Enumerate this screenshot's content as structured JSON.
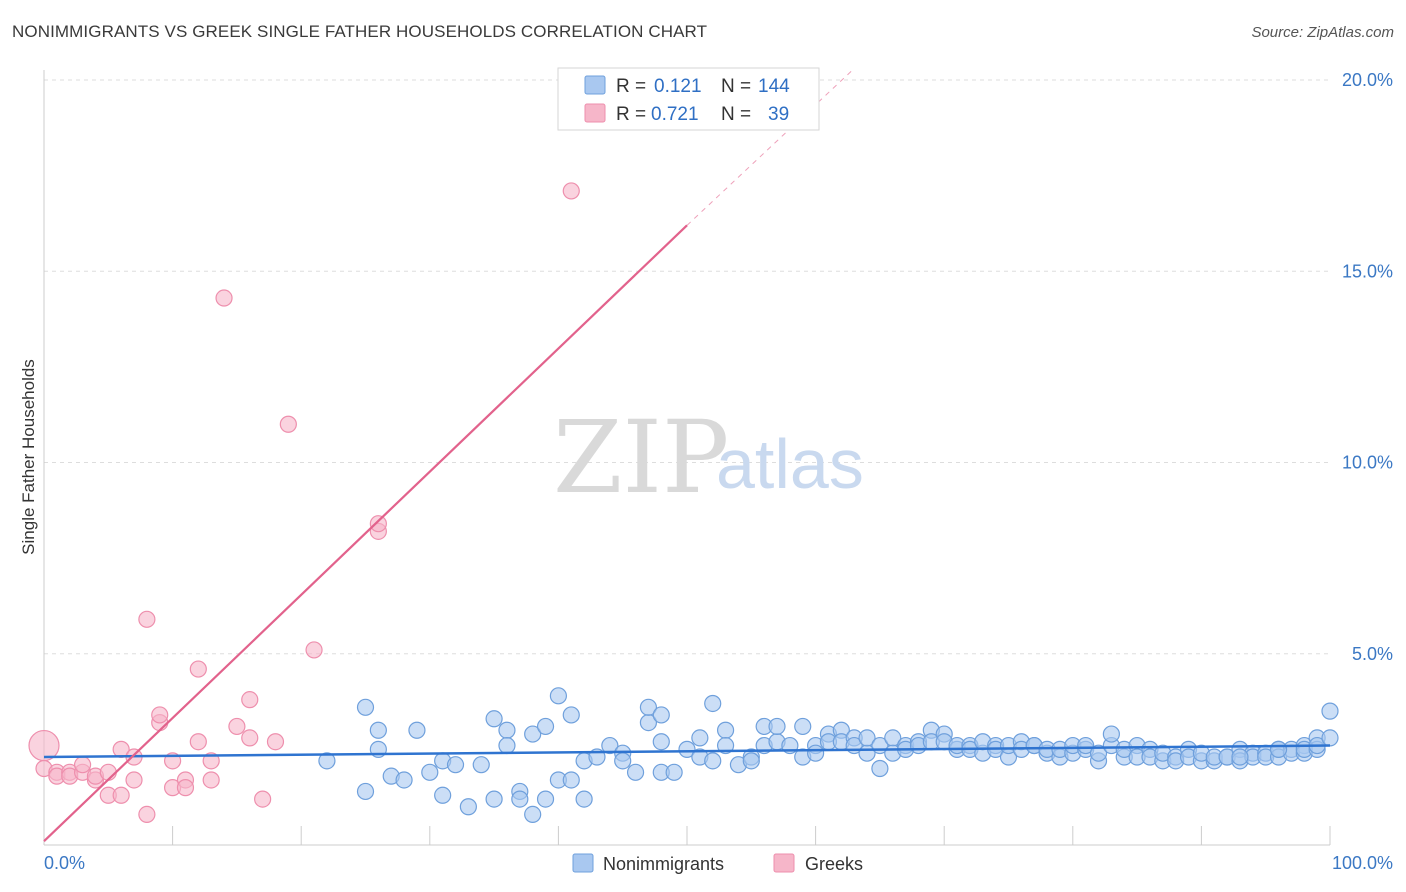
{
  "title": "NONIMMIGRANTS VS GREEK SINGLE FATHER HOUSEHOLDS CORRELATION CHART",
  "source": "Source: ZipAtlas.com",
  "watermark": {
    "zip": "ZIP",
    "atlas": "atlas"
  },
  "colors": {
    "blue_fill": "#a9c8f0",
    "blue_stroke": "#6fa0dc",
    "blue_line": "#2f74d0",
    "pink_fill": "#f6b6c9",
    "pink_stroke": "#ee8fad",
    "pink_line": "#e2628c",
    "grid": "#dddddd",
    "tick_text": "#3b78c4"
  },
  "legend": {
    "rows": [
      {
        "r_label": "R =",
        "r_value": "0.121",
        "n_label": "N =",
        "n_value": "144"
      },
      {
        "r_label": "R =",
        "r_value": "0.721",
        "n_label": "N =",
        "n_value": "39"
      }
    ]
  },
  "bottom_legend": [
    "Nonimmigrants",
    "Greeks"
  ],
  "chart_data": {
    "type": "scatter",
    "title": "NONIMMIGRANTS VS GREEK SINGLE FATHER HOUSEHOLDS CORRELATION CHART",
    "xlabel": "",
    "ylabel": "Single Father Households",
    "xlim": [
      0,
      100
    ],
    "ylim": [
      0,
      20.5
    ],
    "x_tick_labels": [
      "0.0%",
      "100.0%"
    ],
    "y_ticks": [
      5,
      10,
      15,
      20
    ],
    "y_tick_labels": [
      "5.0%",
      "10.0%",
      "15.0%",
      "20.0%"
    ],
    "grid": true,
    "legend_placement": "top-center",
    "series": [
      {
        "name": "Nonimmigrants",
        "r": 0.121,
        "n": 144,
        "trend": {
          "x0": 0,
          "y0": 2.3,
          "x1": 100,
          "y1": 2.6
        },
        "points": [
          [
            22,
            2.2
          ],
          [
            25,
            3.6
          ],
          [
            25,
            1.4
          ],
          [
            26,
            3.0
          ],
          [
            26,
            2.5
          ],
          [
            27,
            1.8
          ],
          [
            28,
            1.7
          ],
          [
            29,
            3.0
          ],
          [
            30,
            1.9
          ],
          [
            31,
            2.2
          ],
          [
            31,
            1.3
          ],
          [
            32,
            2.1
          ],
          [
            33,
            1.0
          ],
          [
            34,
            2.1
          ],
          [
            35,
            3.3
          ],
          [
            35,
            1.2
          ],
          [
            36,
            3.0
          ],
          [
            36,
            2.6
          ],
          [
            37,
            1.4
          ],
          [
            37,
            1.2
          ],
          [
            38,
            0.8
          ],
          [
            38,
            2.9
          ],
          [
            39,
            3.1
          ],
          [
            39,
            1.2
          ],
          [
            40,
            3.9
          ],
          [
            40,
            1.7
          ],
          [
            41,
            3.4
          ],
          [
            41,
            1.7
          ],
          [
            42,
            2.2
          ],
          [
            42,
            1.2
          ],
          [
            43,
            2.3
          ],
          [
            44,
            2.6
          ],
          [
            45,
            2.4
          ],
          [
            45,
            2.2
          ],
          [
            46,
            1.9
          ],
          [
            47,
            3.2
          ],
          [
            47,
            3.6
          ],
          [
            48,
            3.4
          ],
          [
            48,
            2.7
          ],
          [
            48,
            1.9
          ],
          [
            49,
            1.9
          ],
          [
            50,
            2.5
          ],
          [
            51,
            2.8
          ],
          [
            51,
            2.3
          ],
          [
            52,
            3.7
          ],
          [
            52,
            2.2
          ],
          [
            53,
            3.0
          ],
          [
            53,
            2.6
          ],
          [
            54,
            2.1
          ],
          [
            55,
            2.3
          ],
          [
            55,
            2.2
          ],
          [
            56,
            3.1
          ],
          [
            56,
            2.6
          ],
          [
            57,
            2.7
          ],
          [
            57,
            3.1
          ],
          [
            58,
            2.6
          ],
          [
            59,
            2.3
          ],
          [
            59,
            3.1
          ],
          [
            60,
            2.6
          ],
          [
            60,
            2.4
          ],
          [
            61,
            2.9
          ],
          [
            61,
            2.7
          ],
          [
            62,
            3.0
          ],
          [
            62,
            2.7
          ],
          [
            63,
            2.8
          ],
          [
            63,
            2.6
          ],
          [
            64,
            2.4
          ],
          [
            64,
            2.8
          ],
          [
            65,
            2.6
          ],
          [
            65,
            2.0
          ],
          [
            66,
            2.8
          ],
          [
            66,
            2.4
          ],
          [
            67,
            2.6
          ],
          [
            67,
            2.5
          ],
          [
            68,
            2.7
          ],
          [
            68,
            2.6
          ],
          [
            69,
            3.0
          ],
          [
            69,
            2.7
          ],
          [
            70,
            2.9
          ],
          [
            70,
            2.7
          ],
          [
            71,
            2.5
          ],
          [
            71,
            2.6
          ],
          [
            72,
            2.6
          ],
          [
            72,
            2.5
          ],
          [
            73,
            2.4
          ],
          [
            73,
            2.7
          ],
          [
            74,
            2.6
          ],
          [
            74,
            2.5
          ],
          [
            75,
            2.3
          ],
          [
            75,
            2.6
          ],
          [
            76,
            2.7
          ],
          [
            76,
            2.5
          ],
          [
            77,
            2.6
          ],
          [
            77,
            2.6
          ],
          [
            78,
            2.4
          ],
          [
            78,
            2.5
          ],
          [
            79,
            2.3
          ],
          [
            79,
            2.5
          ],
          [
            80,
            2.4
          ],
          [
            80,
            2.6
          ],
          [
            81,
            2.5
          ],
          [
            81,
            2.6
          ],
          [
            82,
            2.2
          ],
          [
            82,
            2.4
          ],
          [
            83,
            2.6
          ],
          [
            83,
            2.9
          ],
          [
            84,
            2.3
          ],
          [
            84,
            2.5
          ],
          [
            85,
            2.6
          ],
          [
            85,
            2.3
          ],
          [
            86,
            2.5
          ],
          [
            86,
            2.3
          ],
          [
            87,
            2.2
          ],
          [
            87,
            2.4
          ],
          [
            88,
            2.3
          ],
          [
            88,
            2.2
          ],
          [
            89,
            2.5
          ],
          [
            89,
            2.3
          ],
          [
            90,
            2.2
          ],
          [
            90,
            2.4
          ],
          [
            91,
            2.2
          ],
          [
            91,
            2.3
          ],
          [
            92,
            2.3
          ],
          [
            92,
            2.3
          ],
          [
            93,
            2.5
          ],
          [
            93,
            2.2
          ],
          [
            94,
            2.4
          ],
          [
            94,
            2.3
          ],
          [
            95,
            2.4
          ],
          [
            95,
            2.3
          ],
          [
            96,
            2.5
          ],
          [
            96,
            2.3
          ],
          [
            97,
            2.5
          ],
          [
            97,
            2.4
          ],
          [
            98,
            2.6
          ],
          [
            98,
            2.4
          ],
          [
            98,
            2.5
          ],
          [
            99,
            2.8
          ],
          [
            99,
            2.5
          ],
          [
            99,
            2.6
          ],
          [
            100,
            3.5
          ],
          [
            100,
            2.8
          ],
          [
            96,
            2.5
          ],
          [
            93,
            2.3
          ]
        ]
      },
      {
        "name": "Greeks",
        "r": 0.721,
        "n": 39,
        "trend": {
          "x0": 0,
          "y0": 0.1,
          "x1": 50,
          "y1": 16.2
        },
        "trend_dashed": {
          "x0": 50,
          "y0": 16.2,
          "x1": 63,
          "y1": 20.3
        },
        "points": [
          [
            0,
            2.6
          ],
          [
            0,
            2.0
          ],
          [
            1,
            1.9
          ],
          [
            1,
            1.8
          ],
          [
            2,
            1.9
          ],
          [
            2,
            1.8
          ],
          [
            3,
            1.9
          ],
          [
            3,
            2.1
          ],
          [
            4,
            1.7
          ],
          [
            4,
            1.8
          ],
          [
            5,
            1.9
          ],
          [
            5,
            1.3
          ],
          [
            6,
            2.5
          ],
          [
            6,
            1.3
          ],
          [
            7,
            2.3
          ],
          [
            7,
            1.7
          ],
          [
            8,
            0.8
          ],
          [
            8,
            5.9
          ],
          [
            9,
            3.2
          ],
          [
            9,
            3.4
          ],
          [
            10,
            2.2
          ],
          [
            10,
            1.5
          ],
          [
            11,
            1.7
          ],
          [
            11,
            1.5
          ],
          [
            12,
            2.7
          ],
          [
            12,
            4.6
          ],
          [
            13,
            1.7
          ],
          [
            13,
            2.2
          ],
          [
            14,
            14.3
          ],
          [
            15,
            3.1
          ],
          [
            16,
            2.8
          ],
          [
            16,
            3.8
          ],
          [
            17,
            1.2
          ],
          [
            18,
            2.7
          ],
          [
            19,
            11.0
          ],
          [
            21,
            5.1
          ],
          [
            26,
            8.2
          ],
          [
            26,
            8.4
          ],
          [
            41,
            17.1
          ]
        ]
      }
    ]
  }
}
